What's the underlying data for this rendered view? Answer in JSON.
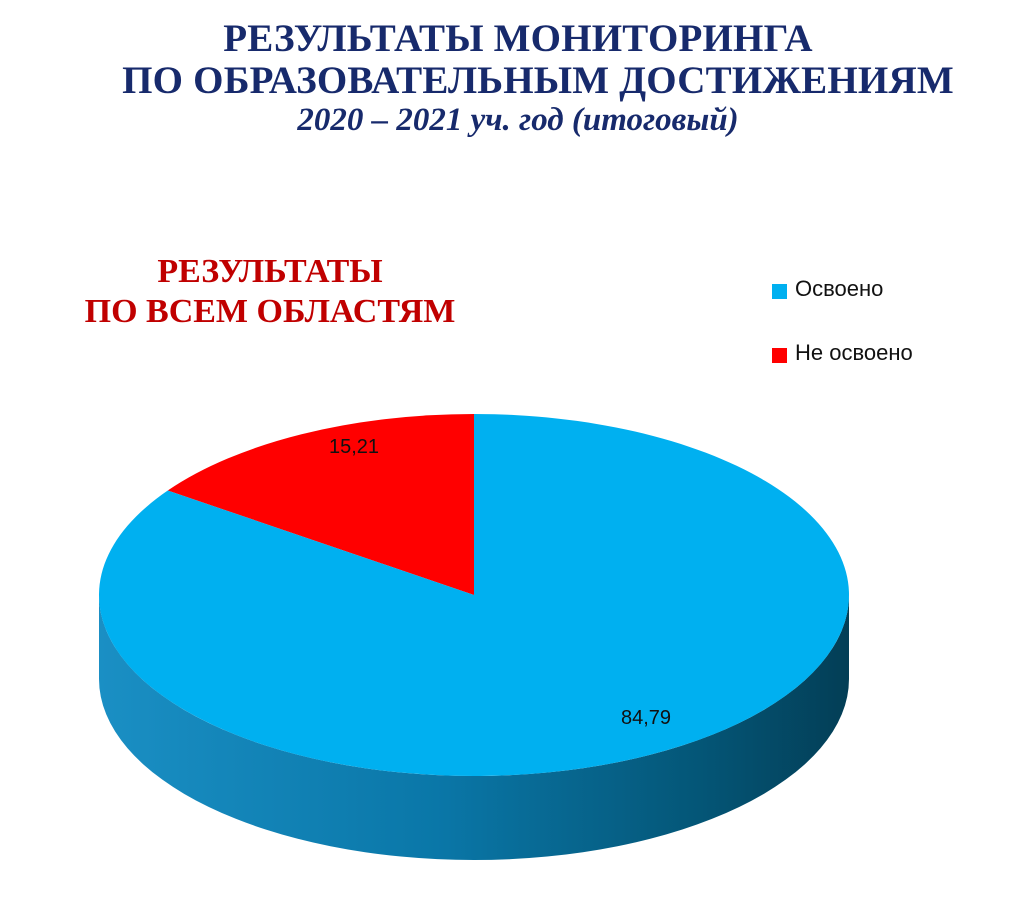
{
  "page": {
    "title_line1": "РЕЗУЛЬТАТЫ МОНИТОРИНГА",
    "title_line2": "ПО ОБРАЗОВАТЕЛЬНЫМ ДОСТИЖЕНИЯМ",
    "title_line3": "2020 – 2021 уч. год (итоговый)"
  },
  "chart_data": {
    "type": "pie",
    "style": "3d",
    "title_line1": "РЕЗУЛЬТАТЫ",
    "title_line2": "ПО ВСЕМ ОБЛАСТЯМ",
    "legend_position": "top-right",
    "categories": [
      "Освоено",
      "Не освоено"
    ],
    "values": [
      84.79,
      15.21
    ],
    "data_labels": [
      "84,79",
      "15,21"
    ],
    "colors": [
      "#00b0f0",
      "#ff0000"
    ],
    "side_colors": [
      "#0a7fb0",
      "#b00000"
    ]
  }
}
